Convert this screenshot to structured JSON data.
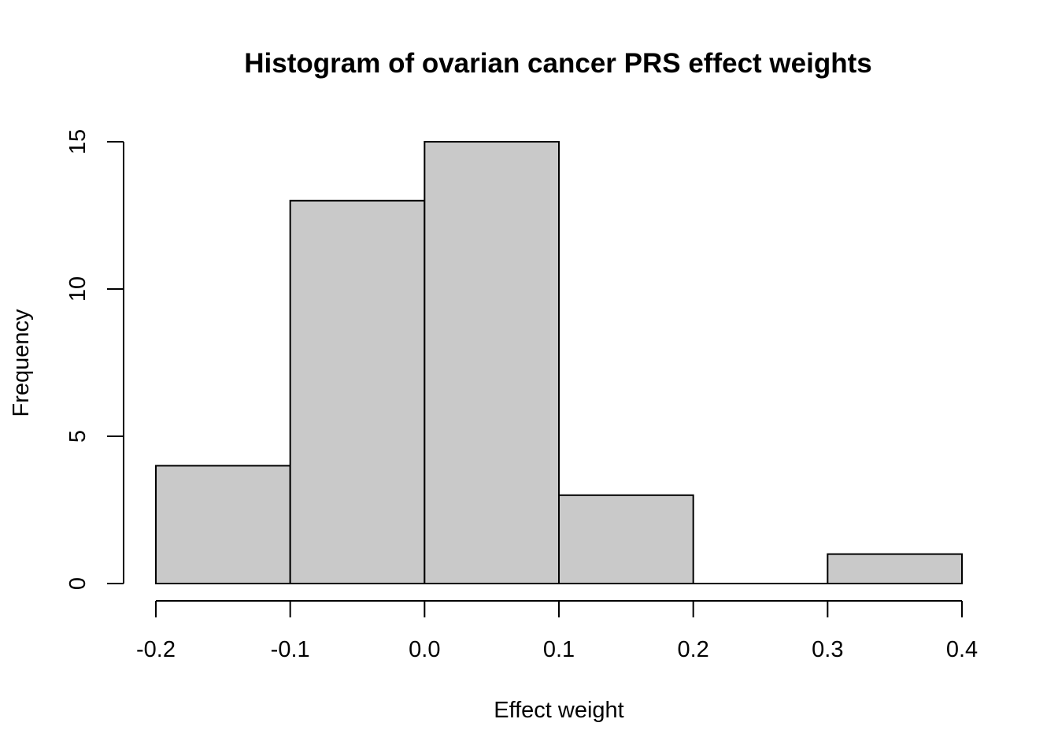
{
  "chart_data": {
    "type": "bar",
    "title": "Histogram of ovarian cancer PRS effect weights",
    "xlabel": "Effect weight",
    "ylabel": "Frequency",
    "bins": [
      {
        "start": -0.2,
        "end": -0.1,
        "count": 4
      },
      {
        "start": -0.1,
        "end": 0.0,
        "count": 13
      },
      {
        "start": 0.0,
        "end": 0.1,
        "count": 15
      },
      {
        "start": 0.1,
        "end": 0.2,
        "count": 3
      },
      {
        "start": 0.2,
        "end": 0.3,
        "count": 0
      },
      {
        "start": 0.3,
        "end": 0.4,
        "count": 1
      }
    ],
    "x_ticks": [
      {
        "value": -0.2,
        "label": "-0.2"
      },
      {
        "value": -0.1,
        "label": "-0.1"
      },
      {
        "value": 0.0,
        "label": "0.0"
      },
      {
        "value": 0.1,
        "label": "0.1"
      },
      {
        "value": 0.2,
        "label": "0.2"
      },
      {
        "value": 0.3,
        "label": "0.3"
      },
      {
        "value": 0.4,
        "label": "0.4"
      }
    ],
    "y_ticks": [
      {
        "value": 0,
        "label": "0"
      },
      {
        "value": 5,
        "label": "5"
      },
      {
        "value": 10,
        "label": "10"
      },
      {
        "value": 15,
        "label": "15"
      }
    ],
    "xlim": [
      -0.2,
      0.4
    ],
    "ylim": [
      0,
      15
    ],
    "grid": false,
    "bar_fill": "#c9c9c9",
    "bar_stroke": "#000000"
  }
}
